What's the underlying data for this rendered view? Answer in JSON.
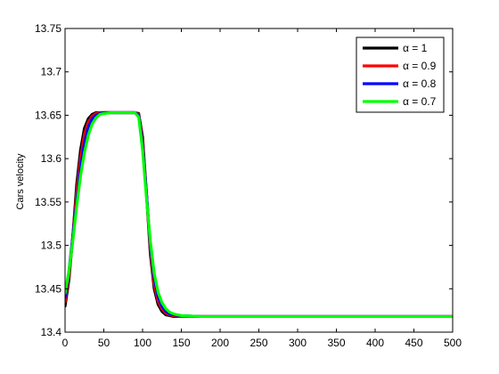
{
  "chart_data": {
    "type": "line",
    "title": "",
    "xlabel": "",
    "ylabel": "Cars velocity",
    "xlim": [
      0,
      500
    ],
    "ylim": [
      13.4,
      13.75
    ],
    "xticks": [
      0,
      50,
      100,
      150,
      200,
      250,
      300,
      350,
      400,
      450,
      500
    ],
    "yticks": [
      13.4,
      13.45,
      13.5,
      13.55,
      13.6,
      13.65,
      13.7,
      13.75
    ],
    "xtick_labels": [
      "0",
      "50",
      "100",
      "150",
      "200",
      "250",
      "300",
      "350",
      "400",
      "450",
      "500"
    ],
    "ytick_labels": [
      "13.4",
      "13.45",
      "13.5",
      "13.55",
      "13.6",
      "13.65",
      "13.7",
      "13.75"
    ],
    "grid": false,
    "legend_position": "top-right",
    "series": [
      {
        "name": "α = 1",
        "color": "#000000",
        "x": [
          0,
          5,
          10,
          15,
          20,
          25,
          30,
          35,
          40,
          45,
          50,
          60,
          70,
          80,
          90,
          95,
          100,
          105,
          110,
          115,
          120,
          125,
          130,
          135,
          140,
          150,
          175,
          200,
          250,
          300,
          350,
          400,
          450,
          500
        ],
        "y": [
          13.43,
          13.46,
          13.51,
          13.57,
          13.61,
          13.635,
          13.646,
          13.651,
          13.653,
          13.653,
          13.653,
          13.653,
          13.653,
          13.653,
          13.653,
          13.652,
          13.625,
          13.56,
          13.49,
          13.45,
          13.432,
          13.424,
          13.42,
          13.419,
          13.418,
          13.418,
          13.418,
          13.418,
          13.418,
          13.418,
          13.418,
          13.418,
          13.418,
          13.418
        ]
      },
      {
        "name": "α = 0.9",
        "color": "#ff0000",
        "x": [
          0,
          5,
          10,
          15,
          20,
          25,
          30,
          35,
          40,
          45,
          50,
          60,
          70,
          80,
          90,
          95,
          100,
          105,
          110,
          115,
          120,
          125,
          130,
          135,
          140,
          150,
          175,
          200,
          250,
          300,
          350,
          400,
          450,
          500
        ],
        "y": [
          13.435,
          13.465,
          13.51,
          13.56,
          13.6,
          13.628,
          13.642,
          13.649,
          13.652,
          13.653,
          13.653,
          13.653,
          13.653,
          13.653,
          13.653,
          13.651,
          13.62,
          13.56,
          13.495,
          13.455,
          13.436,
          13.427,
          13.422,
          13.42,
          13.419,
          13.418,
          13.418,
          13.418,
          13.418,
          13.418,
          13.418,
          13.418,
          13.418,
          13.418
        ]
      },
      {
        "name": "α = 0.8",
        "color": "#0000ff",
        "x": [
          0,
          5,
          10,
          15,
          20,
          25,
          30,
          35,
          40,
          45,
          50,
          60,
          70,
          80,
          90,
          95,
          100,
          105,
          110,
          115,
          120,
          125,
          130,
          135,
          140,
          150,
          175,
          200,
          250,
          300,
          350,
          400,
          450,
          500
        ],
        "y": [
          13.44,
          13.47,
          13.51,
          13.55,
          13.59,
          13.618,
          13.636,
          13.646,
          13.65,
          13.652,
          13.653,
          13.653,
          13.653,
          13.653,
          13.653,
          13.65,
          13.615,
          13.56,
          13.5,
          13.462,
          13.441,
          13.43,
          13.424,
          13.421,
          13.42,
          13.419,
          13.418,
          13.418,
          13.418,
          13.418,
          13.418,
          13.418,
          13.418,
          13.418
        ]
      },
      {
        "name": "α = 0.7",
        "color": "#00ff00",
        "x": [
          0,
          5,
          10,
          15,
          20,
          25,
          30,
          35,
          40,
          45,
          50,
          60,
          70,
          80,
          90,
          95,
          100,
          105,
          110,
          115,
          120,
          125,
          130,
          135,
          140,
          150,
          175,
          200,
          250,
          300,
          350,
          400,
          450,
          500
        ],
        "y": [
          13.445,
          13.47,
          13.505,
          13.545,
          13.58,
          13.607,
          13.627,
          13.64,
          13.647,
          13.651,
          13.652,
          13.653,
          13.653,
          13.653,
          13.653,
          13.648,
          13.61,
          13.555,
          13.505,
          13.468,
          13.446,
          13.434,
          13.427,
          13.423,
          13.421,
          13.419,
          13.418,
          13.418,
          13.418,
          13.418,
          13.418,
          13.418,
          13.418,
          13.418
        ]
      }
    ]
  }
}
